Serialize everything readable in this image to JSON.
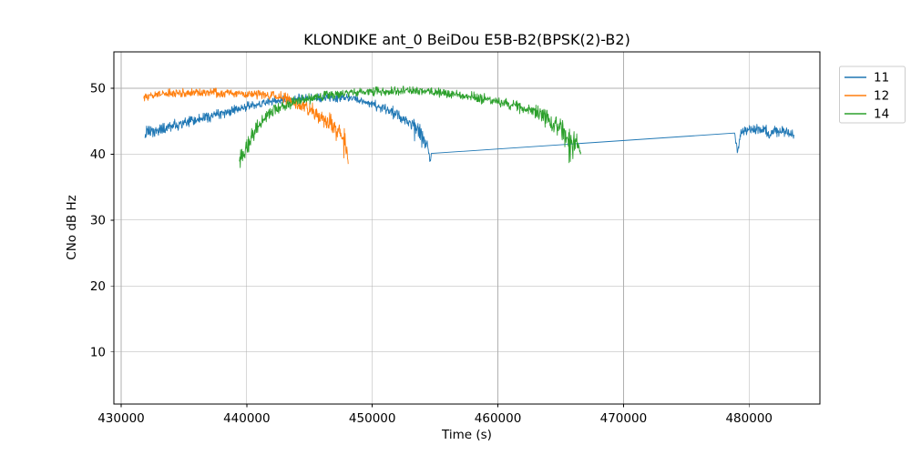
{
  "chart_data": {
    "type": "line",
    "title": "KLONDIKE ant_0 BeiDou E5B-B2(BPSK(2)-B2)",
    "xlabel": "Time (s)",
    "ylabel": "CNo dB Hz",
    "xlim": [
      429420,
      485640
    ],
    "ylim": [
      2.1,
      55.5
    ],
    "x_ticks": [
      430000,
      440000,
      450000,
      460000,
      470000,
      480000
    ],
    "y_ticks": [
      10,
      20,
      30,
      40,
      50
    ],
    "grid": true,
    "background": "#ffffff",
    "grid_color": "#b0b0b0",
    "legend": {
      "position": "outside-upper-right",
      "entries": [
        "11",
        "12",
        "14"
      ]
    },
    "series": [
      {
        "name": "11",
        "color": "#1f77b4",
        "trend_keypoints_t_cno_noise": true,
        "segments": [
          [
            [
              431900,
              43.2,
              1.0
            ],
            [
              433000,
              43.6,
              1.0
            ],
            [
              434500,
              44.4,
              0.9
            ],
            [
              436000,
              45.2,
              0.9
            ],
            [
              438000,
              46.2,
              0.8
            ],
            [
              440000,
              47.1,
              0.8
            ],
            [
              442000,
              48.0,
              0.7
            ],
            [
              444000,
              48.4,
              0.7
            ],
            [
              446000,
              48.5,
              0.7
            ],
            [
              448000,
              48.5,
              0.7
            ],
            [
              449000,
              48.2,
              0.7
            ],
            [
              450000,
              47.6,
              0.8
            ],
            [
              451000,
              46.8,
              0.9
            ],
            [
              452000,
              45.9,
              1.0
            ],
            [
              453000,
              44.8,
              1.2
            ],
            [
              454000,
              43.2,
              1.4
            ],
            [
              454400,
              41.5,
              1.5
            ],
            [
              454600,
              38.6,
              1.0
            ],
            [
              454700,
              40.1,
              0.1
            ]
          ],
          [
            [
              478850,
              43.2,
              0.1
            ],
            [
              479000,
              41.2,
              0.8
            ],
            [
              479120,
              40.3,
              0.6
            ],
            [
              479350,
              43.2,
              0.8
            ],
            [
              480000,
              43.6,
              0.9
            ],
            [
              480800,
              43.9,
              0.9
            ],
            [
              481600,
              43.3,
              1.0
            ],
            [
              482400,
              43.5,
              0.9
            ],
            [
              483200,
              43.2,
              0.9
            ],
            [
              483600,
              42.9,
              0.7
            ]
          ]
        ]
      },
      {
        "name": "12",
        "color": "#ff7f0e",
        "trend_keypoints_t_cno_noise": true,
        "segments": [
          [
            [
              431800,
              48.7,
              0.8
            ],
            [
              433000,
              49.1,
              0.7
            ],
            [
              435000,
              49.3,
              0.7
            ],
            [
              437000,
              49.3,
              0.7
            ],
            [
              439000,
              49.2,
              0.7
            ],
            [
              441000,
              49.0,
              0.7
            ],
            [
              442500,
              48.8,
              0.8
            ],
            [
              443500,
              48.2,
              0.9
            ],
            [
              444500,
              47.4,
              1.1
            ],
            [
              445500,
              46.3,
              1.2
            ],
            [
              446300,
              45.3,
              1.3
            ],
            [
              447000,
              44.4,
              1.5
            ],
            [
              447400,
              43.6,
              1.8
            ],
            [
              447800,
              42.2,
              2.2
            ],
            [
              448000,
              39.8,
              1.5
            ],
            [
              448080,
              38.5,
              0.3
            ]
          ]
        ]
      },
      {
        "name": "14",
        "color": "#2ca02c",
        "trend_keypoints_t_cno_noise": true,
        "segments": [
          [
            [
              439420,
              38.8,
              1.5
            ],
            [
              439700,
              40.0,
              1.6
            ],
            [
              440100,
              41.8,
              1.6
            ],
            [
              440600,
              43.5,
              1.4
            ],
            [
              441200,
              45.0,
              1.2
            ],
            [
              442000,
              46.4,
              1.0
            ],
            [
              443000,
              47.4,
              0.9
            ],
            [
              444500,
              48.2,
              0.8
            ],
            [
              446000,
              48.8,
              0.7
            ],
            [
              448000,
              49.2,
              0.7
            ],
            [
              450000,
              49.5,
              0.7
            ],
            [
              452000,
              49.6,
              0.7
            ],
            [
              454000,
              49.5,
              0.7
            ],
            [
              456000,
              49.2,
              0.7
            ],
            [
              458000,
              48.7,
              0.8
            ],
            [
              460000,
              48.0,
              0.9
            ],
            [
              461500,
              47.4,
              1.0
            ],
            [
              463000,
              46.4,
              1.1
            ],
            [
              464000,
              45.5,
              1.3
            ],
            [
              464700,
              44.5,
              1.6
            ],
            [
              465300,
              43.5,
              1.9
            ],
            [
              465700,
              42.3,
              2.3
            ],
            [
              466000,
              41.3,
              2.0
            ],
            [
              466250,
              42.4,
              1.4
            ],
            [
              466450,
              40.9,
              0.9
            ],
            [
              466600,
              40.3,
              0.3
            ]
          ]
        ]
      }
    ]
  }
}
